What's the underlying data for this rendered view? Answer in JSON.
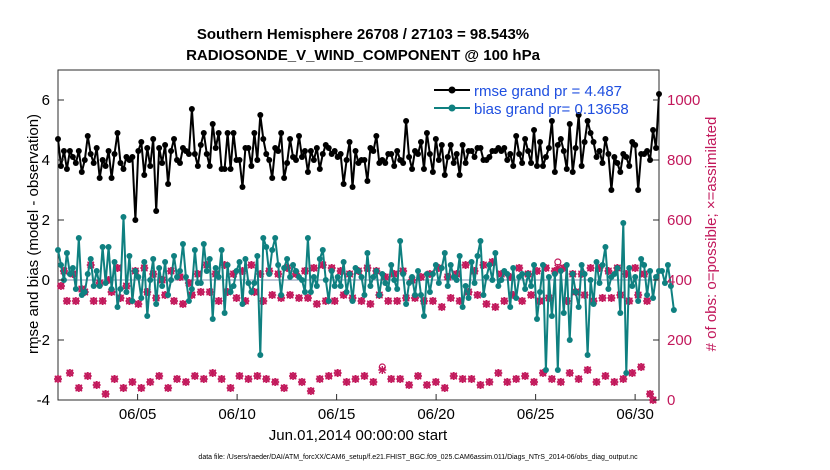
{
  "chart_data": {
    "type": "line",
    "title_line1": "Southern Hemisphere 26708 / 27103 = 98.543%",
    "title_line2": "RADIOSONDE_V_WIND_COMPONENT @ 100 hPa",
    "xlabel": "Jun.01,2014 00:00:00 start",
    "ylabel_left": "rmse and bias (model - observation)",
    "ylabel_right": "# of obs: o=possible; ×=assimilated",
    "footer": "data file: /Users/raeder/DAI/ATM_forcXX/CAM6_setup/f.e21.FHIST_BGC.f09_025.CAM6assim.011/Diags_NTrS_2014-06/obs_diag_output.nc",
    "ylim_left": [
      -4,
      7
    ],
    "ylim_right": [
      0,
      1100
    ],
    "xlim": [
      1,
      31.2
    ],
    "yticks_left": [
      "-4",
      "-2",
      "0",
      "2",
      "4",
      "6"
    ],
    "yticks_right": [
      "0",
      "200",
      "400",
      "600",
      "800",
      "1000"
    ],
    "xticks": [
      "06/05",
      "06/10",
      "06/15",
      "06/20",
      "06/25",
      "06/30"
    ],
    "xtick_values": [
      5,
      10,
      15,
      20,
      25,
      30
    ],
    "legend": [
      {
        "name": "rmse grand pr = 4.487",
        "color": "#000000"
      },
      {
        "name": "bias grand pr= 0.13658",
        "color": "#0f8080"
      }
    ],
    "colors": {
      "rmse": "#000000",
      "bias": "#0f8080",
      "obs": "#c2185b",
      "zero": "#a8b4c8"
    },
    "series": [
      {
        "name": "rmse",
        "values": [
          4.7,
          3.8,
          4.3,
          3.7,
          4.3,
          4.1,
          3.9,
          4.3,
          3.6,
          4.0,
          4.8,
          4.2,
          3.9,
          4.4,
          3.4,
          4.0,
          3.8,
          4.3,
          3.4,
          4.2,
          4.9,
          3.9,
          3.7,
          4.1,
          4.0,
          4.1,
          2.0,
          4.3,
          4.6,
          3.5,
          4.4,
          3.8,
          4.7,
          2.3,
          4.4,
          3.9,
          4.5,
          3.2,
          4.3,
          4.7,
          4.0,
          3.9,
          4.4,
          4.3,
          4.2,
          5.7,
          4.2,
          3.8,
          4.5,
          4.9,
          4.2,
          3.8,
          5.2,
          4.4,
          4.9,
          3.7,
          3.7,
          4.9,
          3.7,
          4.9,
          4.0,
          4.0,
          3.1,
          4.4,
          4.4,
          3.8,
          4.9,
          4.0,
          5.5,
          4.7,
          4.2,
          4.0,
          3.4,
          4.4,
          4.3,
          4.9,
          3.4,
          3.9,
          4.7,
          4.1,
          4.0,
          4.8,
          4.1,
          4.3,
          3.6,
          4.3,
          4.0,
          4.4,
          3.7,
          4.2,
          4.5,
          4.4,
          4.2,
          4.3,
          4.1,
          4.2,
          3.2,
          4.0,
          4.6,
          3.1,
          4.3,
          3.9,
          4.0,
          4.0,
          3.3,
          4.4,
          4.3,
          4.8,
          3.9,
          4.0,
          3.9,
          4.2,
          4.2,
          3.8,
          4.3,
          4.0,
          3.9,
          5.3,
          4.1,
          3.7,
          4.3,
          4.2,
          4.6,
          3.7,
          4.9,
          4.2,
          3.6,
          4.7,
          4.0,
          4.5,
          3.5,
          4.1,
          4.5,
          3.9,
          4.2,
          3.5,
          4.5,
          3.9,
          4.3,
          4.3,
          4.1,
          4.4,
          4.4,
          4.0,
          4.0,
          4.1,
          4.3,
          4.3,
          4.4,
          4.3,
          4.4,
          4.0,
          4.2,
          3.8,
          4.8,
          4.2,
          3.9,
          4.7,
          4.3,
          3.9,
          5.0,
          3.8,
          4.6,
          3.8,
          4.1,
          4.4,
          5.3,
          3.6,
          4.5,
          4.7,
          4.3,
          3.7,
          5.2,
          3.6,
          4.4,
          5.5,
          3.8,
          4.6,
          5.3,
          4.9,
          4.6,
          4.1,
          4.3,
          3.9,
          4.7,
          4.2,
          3.0,
          4.1,
          3.9,
          3.6,
          4.2,
          4.1,
          3.8,
          4.6,
          4.5,
          3.0,
          4.2,
          4.2,
          4.3,
          4.0,
          5.0,
          4.4,
          6.2
        ]
      },
      {
        "name": "bias",
        "values": [
          1.0,
          0.5,
          0.0,
          0.9,
          0.2,
          0.4,
          -0.3,
          1.4,
          -0.5,
          -0.4,
          0.2,
          0.7,
          -0.2,
          0.3,
          -0.2,
          1.1,
          -0.1,
          1.1,
          -0.3,
          0.6,
          -0.9,
          -0.3,
          2.1,
          -0.4,
          0.8,
          -0.7,
          0.3,
          0.1,
          -0.6,
          0.6,
          -1.2,
          0.0,
          0.7,
          -0.8,
          0.4,
          -0.2,
          0.6,
          -0.5,
          0.0,
          0.8,
          0.1,
          0.3,
          1.2,
          0.1,
          -0.7,
          -0.3,
          1.0,
          -0.1,
          -0.1,
          1.2,
          0.3,
          0.7,
          -1.3,
          0.4,
          0.1,
          1.0,
          -1.1,
          0.5,
          -0.4,
          -0.2,
          0.3,
          0.6,
          -0.8,
          0.7,
          -0.1,
          -0.4,
          -0.1,
          0.8,
          -2.5,
          1.4,
          1.1,
          0.2,
          1.0,
          1.4,
          0.5,
          -0.5,
          0.4,
          0.7,
          0.1,
          0.5,
          0.3,
          0.1,
          0.0,
          -0.4,
          1.4,
          -0.4,
          0.1,
          -0.2,
          0.7,
          1.0,
          0.0,
          -0.7,
          0.3,
          -0.2,
          0.1,
          -0.2,
          0.6,
          -0.4,
          0.2,
          -0.7,
          0.4,
          0.3,
          0.1,
          -0.5,
          0.9,
          -0.2,
          0.1,
          0.3,
          -0.5,
          0.2,
          -0.1,
          -0.3,
          0.5,
          0.0,
          -0.3,
          1.3,
          0.2,
          -0.8,
          -0.1,
          0.1,
          -0.5,
          0.3,
          -0.5,
          -1.2,
          0.2,
          -0.4,
          0.2,
          0.5,
          -0.1,
          0.4,
          0.9,
          -0.2,
          0.5,
          0.1,
          0.0,
          0.8,
          -0.9,
          -0.2,
          -0.6,
          0.6,
          -0.1,
          0.8,
          1.3,
          -0.5,
          0.1,
          0.5,
          0.0,
          0.9,
          -0.2,
          0.0,
          0.3,
          0.2,
          -0.9,
          0.4,
          -0.6,
          0.1,
          0.2,
          -0.3,
          0.2,
          -0.2,
          0.5,
          -1.3,
          -0.4,
          0.5,
          -3.0,
          0.1,
          -1.2,
          0.2,
          -3.0,
          0.3,
          -1.1,
          0.5,
          -2.0,
          0.2,
          -0.4,
          -0.9,
          0.5,
          0.2,
          -2.5,
          0.0,
          -0.8,
          0.6,
          -0.1,
          0.5,
          1.1,
          -0.3,
          0.1,
          0.2,
          0.4,
          -1.1,
          1.9,
          -3.1,
          0.4,
          -0.2,
          0.1,
          -0.7,
          0.7,
          0.5,
          -0.5,
          0.3,
          -0.6,
          0.1,
          0.3,
          0.3,
          -0.1,
          0.5,
          -0.2,
          -1.0
        ]
      },
      {
        "name": "obs_possible",
        "values": [
          70,
          380,
          430,
          330,
          90,
          420,
          330,
          40,
          370,
          360,
          80,
          450,
          330,
          50,
          390,
          330,
          20,
          400,
          360,
          70,
          440,
          340,
          40,
          380,
          330,
          60,
          430,
          320,
          40,
          440,
          360,
          60,
          420,
          340,
          80,
          400,
          350,
          40,
          430,
          330,
          70,
          410,
          320,
          60,
          390,
          350,
          80,
          420,
          360,
          70,
          450,
          360,
          90,
          420,
          330,
          70,
          450,
          360,
          40,
          420,
          340,
          80,
          430,
          330,
          70,
          450,
          360,
          80,
          420,
          330,
          70,
          430,
          350,
          60,
          420,
          340,
          40,
          440,
          350,
          80,
          420,
          340,
          60,
          430,
          340,
          30,
          440,
          320,
          70,
          450,
          330,
          80,
          440,
          330,
          90,
          430,
          350,
          60,
          420,
          340,
          70,
          430,
          330,
          80,
          440,
          320,
          60,
          430,
          350,
          110,
          410,
          330,
          70,
          420,
          330,
          70,
          430,
          340,
          50,
          400,
          340,
          80,
          410,
          330,
          50,
          420,
          330,
          60,
          440,
          310,
          40,
          410,
          340,
          80,
          420,
          330,
          70,
          450,
          360,
          70,
          430,
          350,
          50,
          450,
          320,
          60,
          460,
          310,
          90,
          420,
          330,
          60,
          410,
          350,
          70,
          440,
          330,
          80,
          420,
          350,
          60,
          430,
          330,
          90,
          440,
          340,
          70,
          430,
          460,
          60,
          440,
          330,
          90,
          420,
          360,
          70,
          420,
          350,
          100,
          440,
          330,
          60,
          440,
          340,
          80,
          430,
          340,
          60,
          440,
          350,
          70,
          420,
          330,
          90,
          440,
          350,
          110,
          420,
          330,
          20,
          0
        ]
      },
      {
        "name": "obs_assimilated",
        "values": [
          70,
          380,
          430,
          330,
          90,
          420,
          330,
          40,
          370,
          360,
          80,
          450,
          330,
          50,
          390,
          330,
          20,
          400,
          360,
          70,
          440,
          340,
          40,
          380,
          330,
          60,
          430,
          320,
          40,
          440,
          360,
          60,
          420,
          340,
          80,
          400,
          350,
          40,
          430,
          330,
          70,
          410,
          320,
          60,
          390,
          350,
          80,
          420,
          360,
          70,
          450,
          360,
          90,
          420,
          330,
          70,
          450,
          360,
          40,
          420,
          340,
          80,
          430,
          330,
          70,
          450,
          360,
          80,
          420,
          330,
          70,
          430,
          350,
          60,
          420,
          340,
          40,
          440,
          350,
          80,
          420,
          340,
          60,
          430,
          340,
          30,
          440,
          320,
          70,
          450,
          330,
          80,
          440,
          330,
          90,
          430,
          350,
          60,
          420,
          340,
          70,
          430,
          330,
          80,
          440,
          320,
          60,
          430,
          350,
          100,
          410,
          330,
          70,
          420,
          330,
          70,
          430,
          340,
          50,
          400,
          340,
          80,
          410,
          330,
          50,
          420,
          330,
          60,
          440,
          310,
          40,
          410,
          340,
          80,
          420,
          330,
          70,
          450,
          360,
          70,
          430,
          350,
          50,
          450,
          320,
          60,
          460,
          310,
          90,
          420,
          330,
          60,
          410,
          350,
          70,
          440,
          330,
          80,
          420,
          350,
          60,
          430,
          330,
          90,
          440,
          340,
          70,
          430,
          440,
          60,
          440,
          330,
          90,
          420,
          360,
          70,
          420,
          350,
          100,
          440,
          330,
          60,
          440,
          340,
          80,
          430,
          340,
          60,
          440,
          350,
          70,
          420,
          330,
          90,
          440,
          350,
          110,
          420,
          330,
          20,
          0
        ]
      }
    ]
  }
}
